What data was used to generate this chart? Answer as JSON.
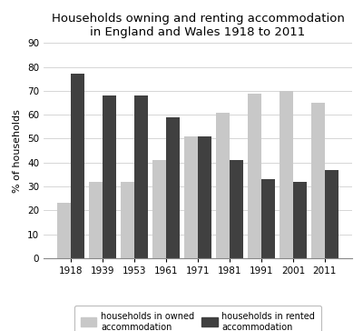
{
  "title": "Households owning and renting accommodation\nin England and Wales 1918 to 2011",
  "years": [
    "1918",
    "1939",
    "1953",
    "1961",
    "1971",
    "1981",
    "1991",
    "2001",
    "2011"
  ],
  "owned": [
    23,
    32,
    32,
    41,
    51,
    61,
    69,
    70,
    65
  ],
  "rented": [
    77,
    68,
    68,
    59,
    51,
    41,
    33,
    32,
    37
  ],
  "owned_color": "#c8c8c8",
  "rented_color": "#404040",
  "ylabel": "% of households",
  "ylim": [
    0,
    90
  ],
  "yticks": [
    0,
    10,
    20,
    30,
    40,
    50,
    60,
    70,
    80,
    90
  ],
  "legend_owned": "households in owned\naccommodation",
  "legend_rented": "households in rented\naccommodation",
  "bar_width": 0.42,
  "title_fontsize": 9.5,
  "axis_fontsize": 8,
  "tick_fontsize": 7.5,
  "legend_fontsize": 7
}
